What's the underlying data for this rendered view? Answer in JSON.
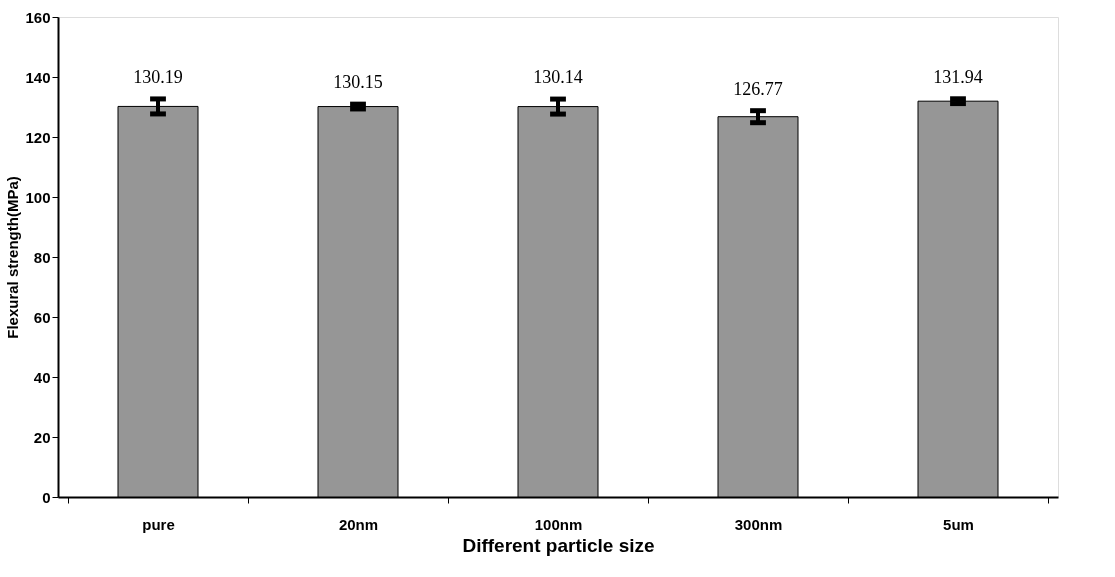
{
  "chart_data": {
    "type": "bar",
    "xlabel": "Different particle size",
    "ylabel": "Flexural strength(MPa)",
    "categories": [
      "pure",
      "20nm",
      "100nm",
      "300nm",
      "5um"
    ],
    "values": [
      130.19,
      130.15,
      130.14,
      126.77,
      131.94
    ],
    "errors": [
      2.5,
      0.8,
      2.5,
      2,
      0.8
    ],
    "color": "#969696",
    "ylim": [
      0,
      160
    ],
    "yticks": [
      0,
      20,
      40,
      60,
      80,
      100,
      120,
      140,
      160
    ],
    "data_labels": true,
    "grid": false
  }
}
